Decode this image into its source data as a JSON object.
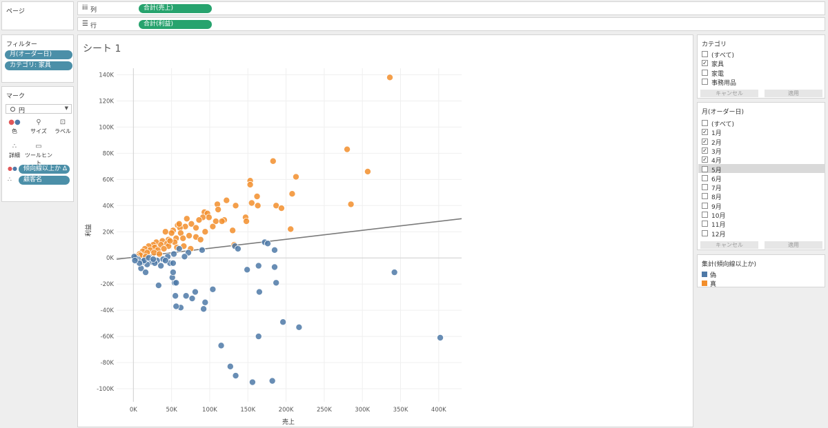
{
  "pages": {
    "title": "ページ"
  },
  "columns_shelf": {
    "label": "列",
    "pill": "合計(売上)"
  },
  "rows_shelf": {
    "label": "行",
    "pill": "合計(利益)"
  },
  "filters": {
    "title": "フィルター",
    "pills": [
      "月(オーダー日)",
      "カテゴリ: 家具"
    ]
  },
  "marks": {
    "title": "マーク",
    "mark_type": "円",
    "buttons": [
      "色",
      "サイズ",
      "ラベル",
      "詳細",
      "ツールヒント"
    ],
    "fields": [
      "傾向線以上か Δ",
      "顧客名"
    ]
  },
  "sheet": {
    "title": "シート 1"
  },
  "category_filter": {
    "title": "カテゴリ",
    "items": [
      {
        "label": "(すべて)",
        "checked": false
      },
      {
        "label": "家具",
        "checked": true
      },
      {
        "label": "家電",
        "checked": false
      },
      {
        "label": "事務用品",
        "checked": false
      }
    ],
    "cancel": "キャンセル",
    "apply": "適用"
  },
  "month_filter": {
    "title": "月(オーダー日)",
    "items": [
      {
        "label": "(すべて)",
        "checked": false
      },
      {
        "label": "1月",
        "checked": true
      },
      {
        "label": "2月",
        "checked": true
      },
      {
        "label": "3月",
        "checked": true
      },
      {
        "label": "4月",
        "checked": true
      },
      {
        "label": "5月",
        "checked": false
      },
      {
        "label": "6月",
        "checked": false
      },
      {
        "label": "7月",
        "checked": false
      },
      {
        "label": "8月",
        "checked": false
      },
      {
        "label": "9月",
        "checked": false
      },
      {
        "label": "10月",
        "checked": false
      },
      {
        "label": "11月",
        "checked": false
      },
      {
        "label": "12月",
        "checked": false
      }
    ],
    "cancel": "キャンセル",
    "apply": "適用"
  },
  "legend": {
    "title": "集計(傾向線以上か)",
    "items": [
      {
        "label": "偽",
        "color": "#4e79a7"
      },
      {
        "label": "真",
        "color": "#f28e2b"
      }
    ]
  },
  "chart_data": {
    "type": "scatter",
    "xlabel": "売上",
    "ylabel": "利益",
    "xlim": [
      -22000,
      430000
    ],
    "ylim": [
      -110000,
      145000
    ],
    "x_ticks": [
      "0K",
      "50K",
      "100K",
      "150K",
      "200K",
      "250K",
      "300K",
      "350K",
      "400K"
    ],
    "y_ticks": [
      "-100K",
      "-80K",
      "-60K",
      "-40K",
      "-20K",
      "0K",
      "20K",
      "40K",
      "60K",
      "80K",
      "100K",
      "120K",
      "140K"
    ],
    "trend_line": [
      [
        -22000,
        -1000
      ],
      [
        430000,
        30000
      ]
    ],
    "series": [
      {
        "name": "真",
        "color": "#f28e2b",
        "points": [
          [
            336000,
            138000
          ],
          [
            280000,
            83000
          ],
          [
            307000,
            66000
          ],
          [
            183000,
            74000
          ],
          [
            213000,
            62000
          ],
          [
            153000,
            59000
          ],
          [
            153000,
            56000
          ],
          [
            208000,
            49000
          ],
          [
            162000,
            47000
          ],
          [
            285000,
            41000
          ],
          [
            122000,
            44000
          ],
          [
            110000,
            41000
          ],
          [
            155000,
            42000
          ],
          [
            163000,
            40000
          ],
          [
            187000,
            40000
          ],
          [
            194000,
            38000
          ],
          [
            134000,
            40000
          ],
          [
            111000,
            37000
          ],
          [
            93000,
            35000
          ],
          [
            97000,
            34000
          ],
          [
            91000,
            31000
          ],
          [
            99000,
            31000
          ],
          [
            147000,
            31000
          ],
          [
            119000,
            29000
          ],
          [
            86000,
            29000
          ],
          [
            108000,
            28000
          ],
          [
            116000,
            28000
          ],
          [
            76000,
            26000
          ],
          [
            68000,
            24000
          ],
          [
            58000,
            25000
          ],
          [
            61000,
            23000
          ],
          [
            148000,
            28000
          ],
          [
            130000,
            21000
          ],
          [
            206000,
            22000
          ],
          [
            82000,
            23000
          ],
          [
            52000,
            21000
          ],
          [
            42000,
            20000
          ],
          [
            50000,
            19000
          ],
          [
            62000,
            19000
          ],
          [
            73000,
            17000
          ],
          [
            82000,
            16000
          ],
          [
            65000,
            15000
          ],
          [
            56000,
            15000
          ],
          [
            46000,
            14000
          ],
          [
            38000,
            13000
          ],
          [
            30000,
            12000
          ],
          [
            54000,
            12000
          ],
          [
            44000,
            11000
          ],
          [
            26000,
            10000
          ],
          [
            36000,
            10000
          ],
          [
            20000,
            9000
          ],
          [
            28000,
            8000
          ],
          [
            46000,
            9000
          ],
          [
            15000,
            7000
          ],
          [
            22000,
            6000
          ],
          [
            32000,
            6000
          ],
          [
            40000,
            7000
          ],
          [
            12000,
            5000
          ],
          [
            18000,
            4000
          ],
          [
            8000,
            3000
          ],
          [
            132000,
            10000
          ],
          [
            57000,
            8000
          ],
          [
            66000,
            9000
          ],
          [
            75000,
            7000
          ],
          [
            27000,
            4000
          ],
          [
            34000,
            3000
          ],
          [
            9000,
            2000
          ],
          [
            16000,
            1000
          ],
          [
            4000,
            1000
          ],
          [
            88000,
            14000
          ],
          [
            94000,
            20000
          ],
          [
            104000,
            24000
          ],
          [
            48000,
            13000
          ],
          [
            60000,
            26000
          ],
          [
            70000,
            30000
          ]
        ]
      },
      {
        "name": "偽",
        "color": "#4e79a7",
        "points": [
          [
            402000,
            -61000
          ],
          [
            342000,
            -11000
          ],
          [
            217000,
            -53000
          ],
          [
            196000,
            -49000
          ],
          [
            164000,
            -60000
          ],
          [
            182000,
            -94000
          ],
          [
            156000,
            -95000
          ],
          [
            134000,
            -90000
          ],
          [
            127000,
            -83000
          ],
          [
            115000,
            -67000
          ],
          [
            92000,
            -39000
          ],
          [
            94000,
            -34000
          ],
          [
            104000,
            -24000
          ],
          [
            81000,
            -26000
          ],
          [
            77000,
            -31000
          ],
          [
            69000,
            -29000
          ],
          [
            62000,
            -38000
          ],
          [
            56000,
            -37000
          ],
          [
            55000,
            -29000
          ],
          [
            54000,
            -19000
          ],
          [
            56000,
            -19000
          ],
          [
            51000,
            -15000
          ],
          [
            52000,
            -11000
          ],
          [
            33000,
            -21000
          ],
          [
            187000,
            -19000
          ],
          [
            165000,
            -26000
          ],
          [
            185000,
            -7000
          ],
          [
            164000,
            -6000
          ],
          [
            149000,
            -9000
          ],
          [
            133000,
            9000
          ],
          [
            137000,
            7000
          ],
          [
            172000,
            12000
          ],
          [
            176000,
            11000
          ],
          [
            185000,
            6000
          ],
          [
            90000,
            6000
          ],
          [
            60000,
            7000
          ],
          [
            72000,
            4000
          ],
          [
            67000,
            1000
          ],
          [
            53000,
            3000
          ],
          [
            45000,
            1000
          ],
          [
            39000,
            -1000
          ],
          [
            31000,
            -2000
          ],
          [
            24000,
            -3000
          ],
          [
            18000,
            -5000
          ],
          [
            12000,
            -3000
          ],
          [
            6000,
            -1000
          ],
          [
            3000,
            0
          ],
          [
            1000,
            1000
          ],
          [
            10000,
            -8000
          ],
          [
            16000,
            -11000
          ],
          [
            28000,
            -4000
          ],
          [
            36000,
            -6000
          ],
          [
            48000,
            -4000
          ],
          [
            52000,
            -4000
          ],
          [
            14000,
            -2000
          ],
          [
            8000,
            -4000
          ],
          [
            20000,
            0
          ],
          [
            2000,
            -2000
          ],
          [
            26000,
            -1000
          ],
          [
            42000,
            -2000
          ]
        ]
      }
    ]
  }
}
